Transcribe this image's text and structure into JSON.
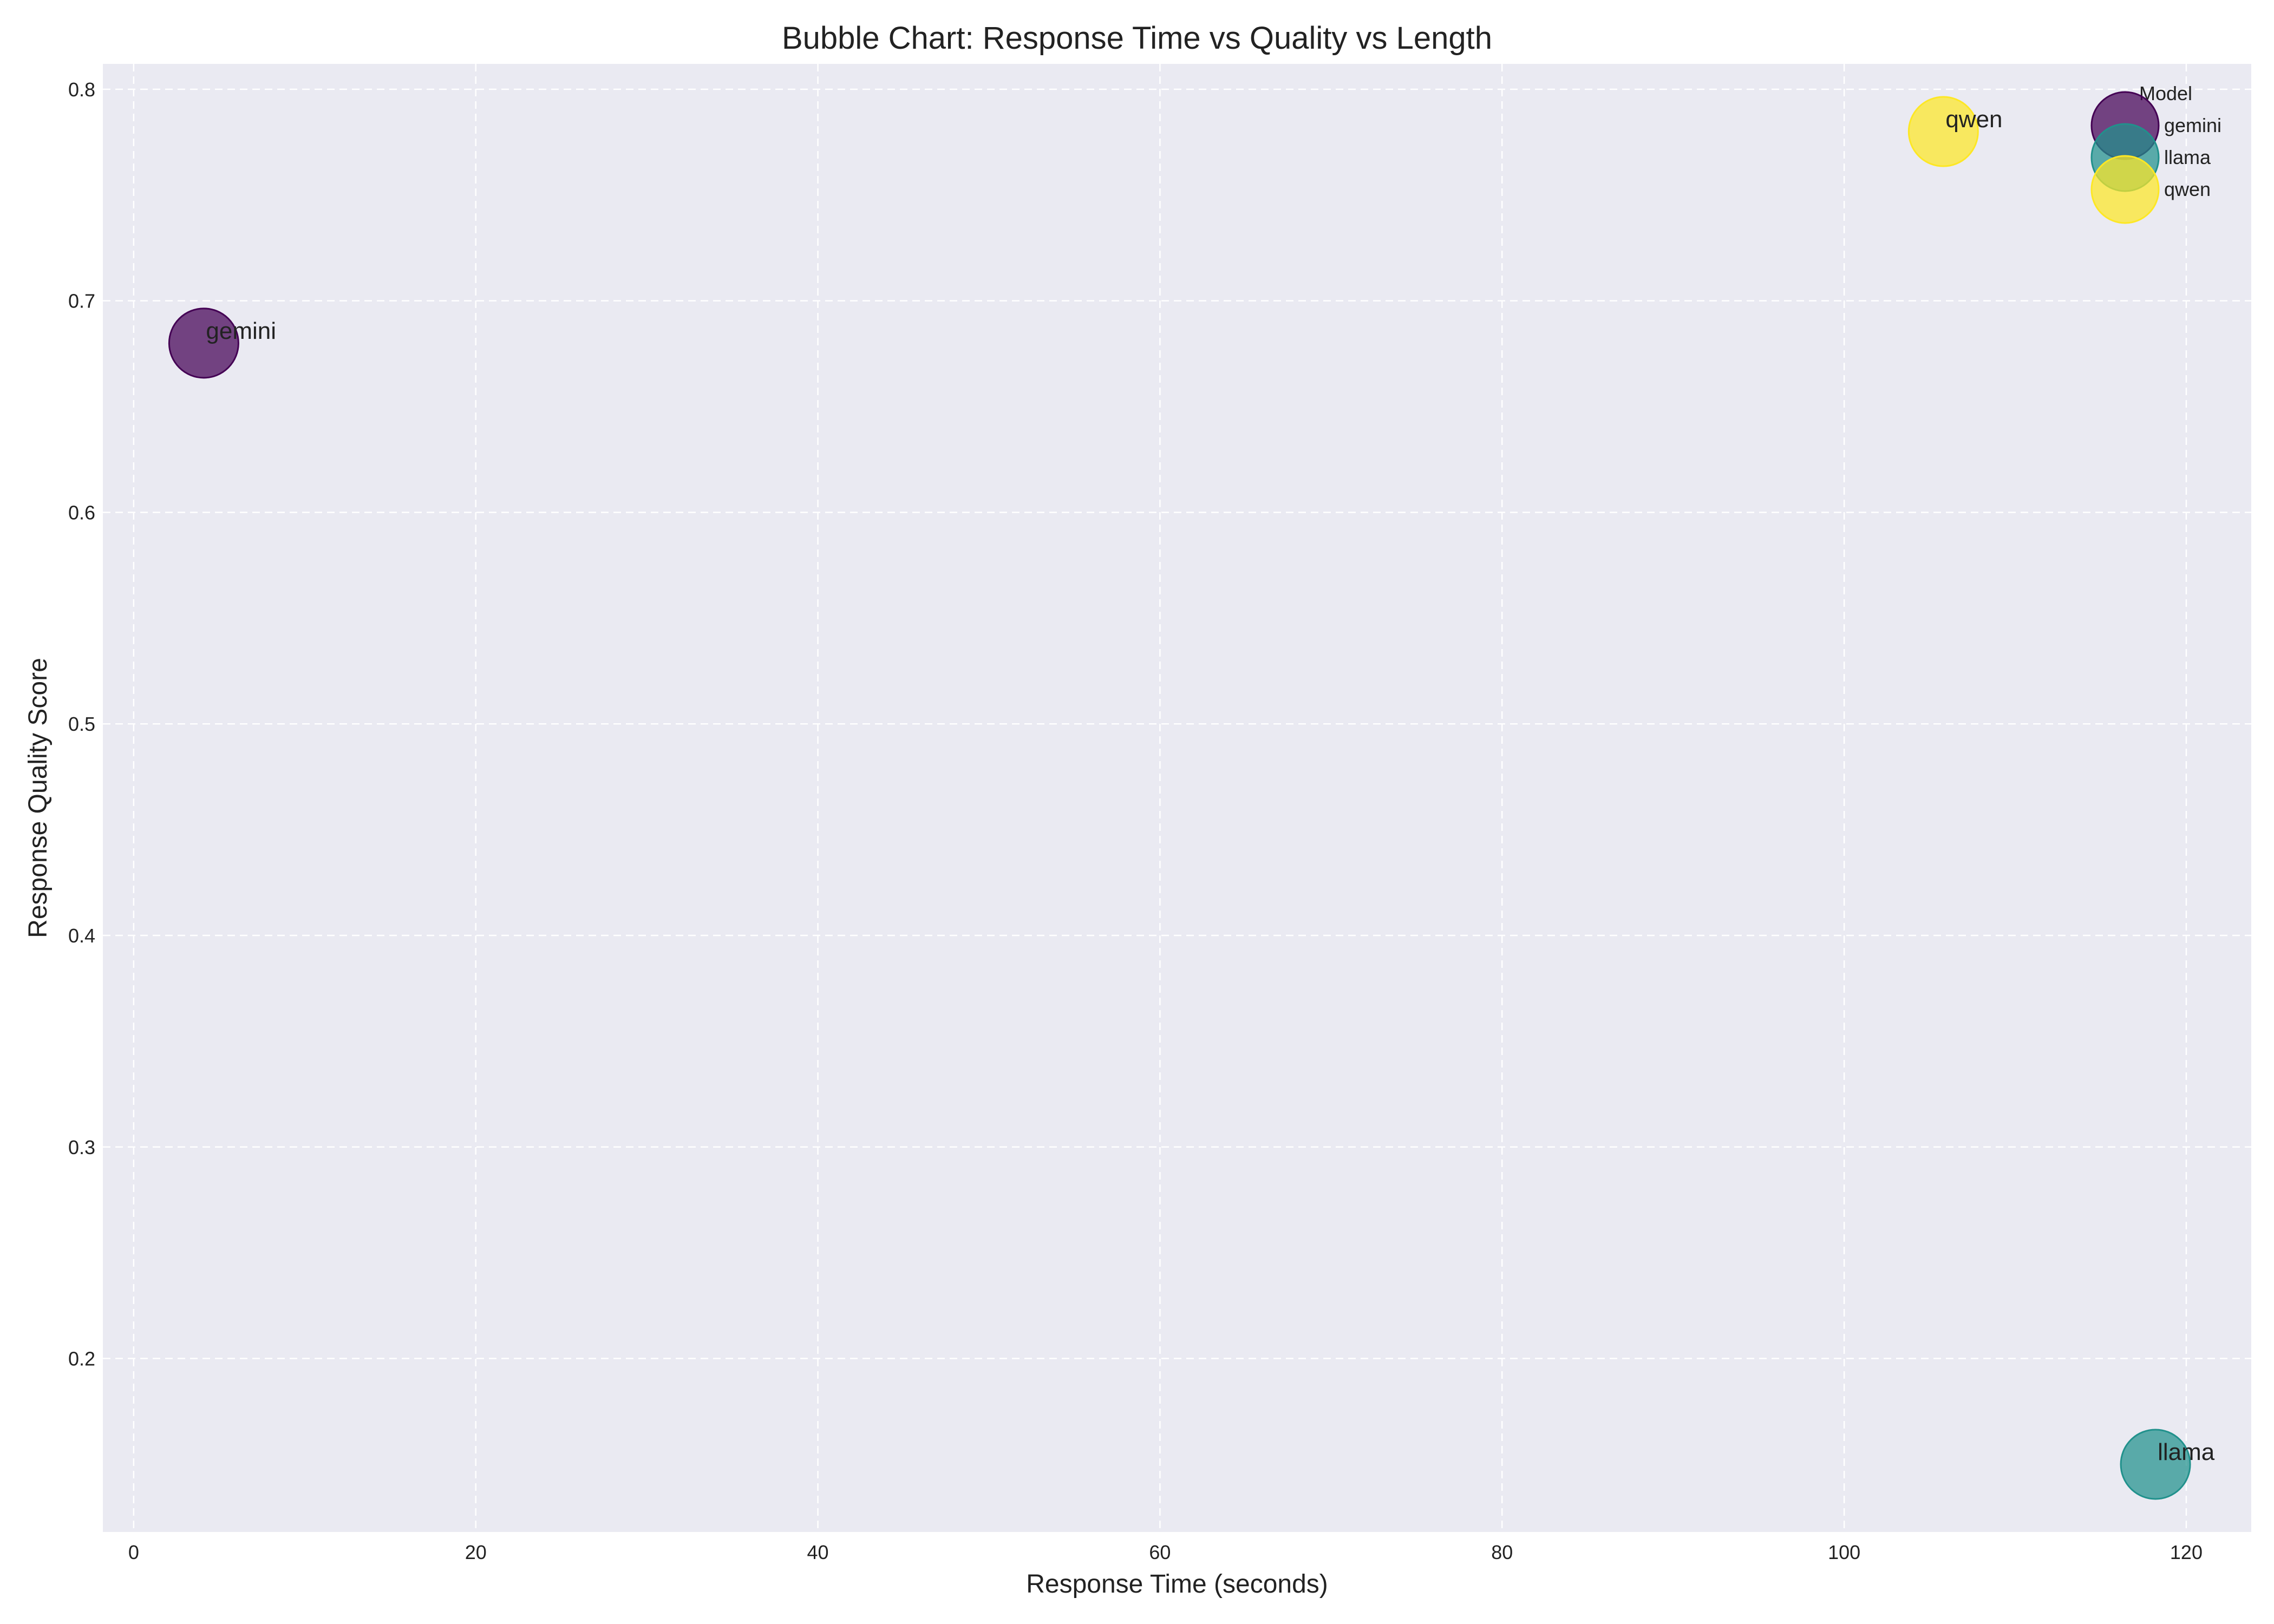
{
  "chart_data": {
    "type": "scatter",
    "title": "Bubble Chart: Response Time vs Quality vs Length",
    "xlabel": "Response Time (seconds)",
    "ylabel": "Response Quality Score",
    "xlim": [
      -1.8,
      123.8
    ],
    "ylim": [
      0.118,
      0.812
    ],
    "x_ticks": [
      0,
      20,
      40,
      60,
      80,
      100,
      120
    ],
    "y_ticks": [
      0.2,
      0.3,
      0.4,
      0.5,
      0.6,
      0.7,
      0.8
    ],
    "grid": true,
    "legend_title": "Model",
    "legend_position": "top-right",
    "series": [
      {
        "name": "gemini",
        "x": 4.1,
        "y": 0.68,
        "color": "#440154"
      },
      {
        "name": "llama",
        "x": 118.2,
        "y": 0.15,
        "color": "#21918c"
      },
      {
        "name": "qwen",
        "x": 105.8,
        "y": 0.78,
        "color": "#fde725"
      }
    ],
    "colors": {
      "plot_background": "#eaeaf2",
      "grid": "#ffffff"
    }
  }
}
